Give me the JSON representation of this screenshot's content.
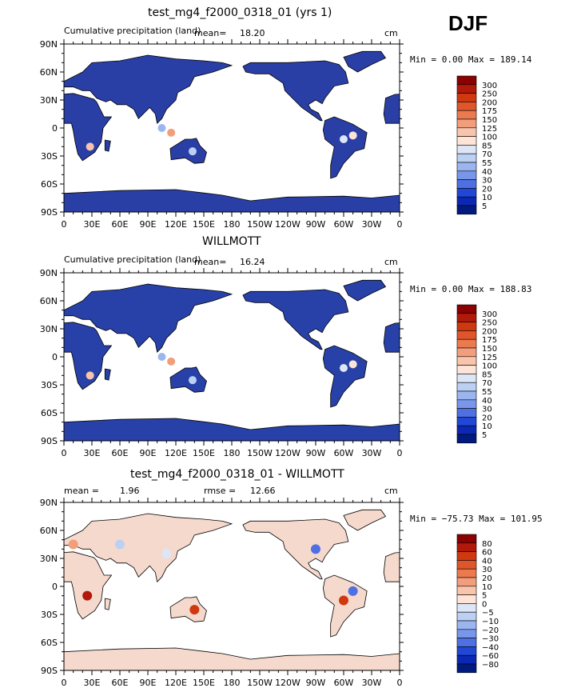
{
  "season": "DJF",
  "panels": [
    {
      "title": "test_mg4_f2000_0318_01 (yrs 1)",
      "subtitle": "Cumulative precipitation (land)",
      "mean_label": "mean=",
      "mean_value": "18.20",
      "units": "cm",
      "minmax": "Min =    0.00 Max = 189.14",
      "colorbar": {
        "labels": [
          "300",
          "250",
          "200",
          "175",
          "150",
          "125",
          "100",
          "85",
          "70",
          "55",
          "40",
          "30",
          "20",
          "10",
          "5"
        ],
        "colors": [
          "#8b0000",
          "#b11a0a",
          "#d0380f",
          "#e0552a",
          "#ec7a4f",
          "#f29e7d",
          "#f8c4ab",
          "#fde4d6",
          "#dde6f6",
          "#bcd0f4",
          "#9bb5f0",
          "#7896ea",
          "#4e70e2",
          "#2147d6",
          "#0b28b5",
          "#011a80"
        ]
      }
    },
    {
      "title": "WILLMOTT",
      "subtitle": "Cumulative precipitation (land)",
      "mean_label": "mean=",
      "mean_value": "16.24",
      "units": "cm",
      "minmax": "Min =    0.00 Max = 188.83",
      "colorbar": {
        "labels": [
          "300",
          "250",
          "200",
          "175",
          "150",
          "125",
          "100",
          "85",
          "70",
          "55",
          "40",
          "30",
          "20",
          "10",
          "5"
        ],
        "colors": [
          "#8b0000",
          "#b11a0a",
          "#d0380f",
          "#e0552a",
          "#ec7a4f",
          "#f29e7d",
          "#f8c4ab",
          "#fde4d6",
          "#dde6f6",
          "#bcd0f4",
          "#9bb5f0",
          "#7896ea",
          "#4e70e2",
          "#2147d6",
          "#0b28b5",
          "#011a80"
        ]
      }
    },
    {
      "title": "test_mg4_f2000_0318_01 - WILLMOTT",
      "subtitle": "",
      "mean_label": "mean =",
      "mean_value": "1.96",
      "rmse_label": "rmse =",
      "rmse_value": "12.66",
      "units": "cm",
      "minmax": "Min = −75.73 Max = 101.95",
      "colorbar": {
        "labels": [
          "80",
          "60",
          "40",
          "30",
          "20",
          "10",
          "5",
          "0",
          "−5",
          "−10",
          "−20",
          "−30",
          "−40",
          "−60",
          "−80"
        ],
        "colors": [
          "#8b0000",
          "#b11a0a",
          "#d0380f",
          "#e0552a",
          "#ec7a4f",
          "#f29e7d",
          "#f8c4ab",
          "#fde4d6",
          "#dde6f6",
          "#bcd0f4",
          "#9bb5f0",
          "#7896ea",
          "#4e70e2",
          "#2147d6",
          "#0b28b5",
          "#011a80"
        ]
      }
    }
  ],
  "axes": {
    "lat_labels": [
      "90N",
      "60N",
      "30N",
      "0",
      "30S",
      "60S",
      "90S"
    ],
    "lon_labels": [
      "0",
      "30E",
      "60E",
      "90E",
      "120E",
      "150E",
      "180",
      "150W",
      "120W",
      "90W",
      "60W",
      "30W",
      "0"
    ]
  },
  "colors": {
    "land_wet_test": "#2a3fa6",
    "land_wet_obs": "#2741a8",
    "diff_land": "#f5d9cc",
    "ocean": "#ffffff"
  }
}
